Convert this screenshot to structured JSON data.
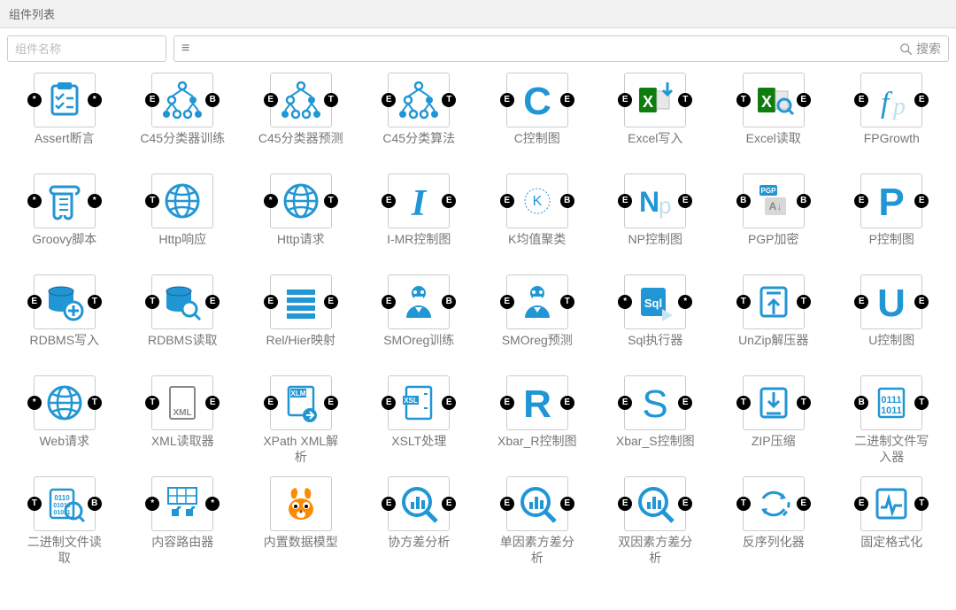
{
  "window": {
    "title": "组件列表"
  },
  "toolbar": {
    "name_placeholder": "组件名称",
    "search_placeholder": "",
    "search_label": "搜索"
  },
  "colors": {
    "accent": "#2196d4",
    "dark_accent": "#1b5e8e",
    "green": "#107c10",
    "orange": "#ff8a00",
    "port_bg": "#000000"
  },
  "components": [
    {
      "label": "Assert断言",
      "icon": "assert",
      "left_port": "*",
      "right_port": "*"
    },
    {
      "label": "C45分类器训练",
      "icon": "tree",
      "left_port": "E",
      "right_port": "B"
    },
    {
      "label": "C45分类器预测",
      "icon": "tree",
      "left_port": "E",
      "right_port": "T"
    },
    {
      "label": "C45分类算法",
      "icon": "tree",
      "left_port": "E",
      "right_port": "T"
    },
    {
      "label": "C控制图",
      "icon": "letterC",
      "left_port": "E",
      "right_port": "E"
    },
    {
      "label": "Excel写入",
      "icon": "excel-dn",
      "left_port": "E",
      "right_port": "T"
    },
    {
      "label": "Excel读取",
      "icon": "excel-mag",
      "left_port": "T",
      "right_port": "E"
    },
    {
      "label": "FPGrowth",
      "icon": "fp",
      "left_port": "E",
      "right_port": "E"
    },
    {
      "label": "Groovy脚本",
      "icon": "scroll",
      "left_port": "*",
      "right_port": "*"
    },
    {
      "label": "Http响应",
      "icon": "globe",
      "left_port": "T",
      "right_port": ""
    },
    {
      "label": "Http请求",
      "icon": "globe",
      "left_port": "*",
      "right_port": "T"
    },
    {
      "label": "I-MR控制图",
      "icon": "letterI",
      "left_port": "E",
      "right_port": "E"
    },
    {
      "label": "K均值聚类",
      "icon": "kcircle",
      "left_port": "E",
      "right_port": "B"
    },
    {
      "label": "NP控制图",
      "icon": "np",
      "left_port": "E",
      "right_port": "E"
    },
    {
      "label": "PGP加密",
      "icon": "pgp",
      "left_port": "B",
      "right_port": "B"
    },
    {
      "label": "P控制图",
      "icon": "letterP",
      "left_port": "E",
      "right_port": "E"
    },
    {
      "label": "RDBMS写入",
      "icon": "db-plus",
      "left_port": "E",
      "right_port": "T"
    },
    {
      "label": "RDBMS读取",
      "icon": "db-mag",
      "left_port": "T",
      "right_port": "E"
    },
    {
      "label": "Rel/Hier映射",
      "icon": "list",
      "left_port": "E",
      "right_port": "E"
    },
    {
      "label": "SMOreg训练",
      "icon": "person",
      "left_port": "E",
      "right_port": "B"
    },
    {
      "label": "SMOreg预测",
      "icon": "person",
      "left_port": "E",
      "right_port": "T"
    },
    {
      "label": "Sql执行器",
      "icon": "sql",
      "left_port": "*",
      "right_port": "*"
    },
    {
      "label": "UnZip解压器",
      "icon": "unzip",
      "left_port": "T",
      "right_port": "T"
    },
    {
      "label": "U控制图",
      "icon": "letterU",
      "left_port": "E",
      "right_port": "E"
    },
    {
      "label": "Web请求",
      "icon": "globe",
      "left_port": "*",
      "right_port": "T"
    },
    {
      "label": "XML读取器",
      "icon": "xml",
      "left_port": "T",
      "right_port": "E"
    },
    {
      "label": "XPath XML解析",
      "icon": "xlm",
      "left_port": "E",
      "right_port": "E"
    },
    {
      "label": "XSLT处理",
      "icon": "xsl",
      "left_port": "E",
      "right_port": "E"
    },
    {
      "label": "Xbar_R控制图",
      "icon": "letterR",
      "left_port": "E",
      "right_port": "E"
    },
    {
      "label": "Xbar_S控制图",
      "icon": "letterS",
      "left_port": "E",
      "right_port": "E"
    },
    {
      "label": "ZIP压缩",
      "icon": "zip",
      "left_port": "T",
      "right_port": "T"
    },
    {
      "label": "二进制文件写入器",
      "icon": "binary",
      "left_port": "B",
      "right_port": "T"
    },
    {
      "label": "二进制文件读取",
      "icon": "bin-mag",
      "left_port": "T",
      "right_port": "B"
    },
    {
      "label": "内容路由器",
      "icon": "router",
      "left_port": "*",
      "right_port": "*"
    },
    {
      "label": "内置数据模型",
      "icon": "squirrel",
      "left_port": "",
      "right_port": ""
    },
    {
      "label": "协方差分析",
      "icon": "magbars",
      "left_port": "E",
      "right_port": "E"
    },
    {
      "label": "单因素方差分析",
      "icon": "magbars",
      "left_port": "E",
      "right_port": "E"
    },
    {
      "label": "双因素方差分析",
      "icon": "magbars",
      "left_port": "E",
      "right_port": "E"
    },
    {
      "label": "反序列化器",
      "icon": "swap",
      "left_port": "T",
      "right_port": "E"
    },
    {
      "label": "固定格式化",
      "icon": "pulse",
      "left_port": "E",
      "right_port": "T"
    }
  ]
}
